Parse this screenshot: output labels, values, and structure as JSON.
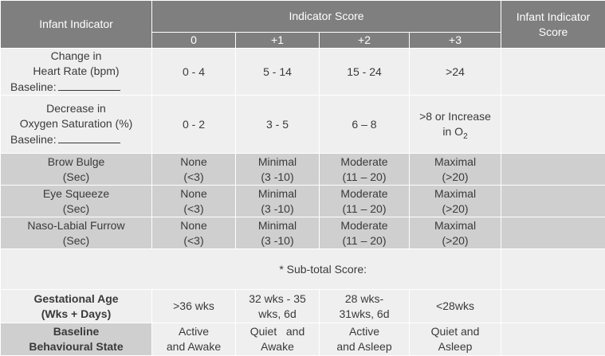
{
  "header": {
    "infant_indicator": "Infant Indicator",
    "indicator_score": "Indicator Score",
    "infant_indicator_score_l1": "Infant Indicator",
    "infant_indicator_score_l2": "Score",
    "scores": [
      "0",
      "+1",
      "+2",
      "+3"
    ]
  },
  "rows": {
    "heart_rate": {
      "label_l1": "Change in",
      "label_l2": "Heart Rate (bpm)",
      "baseline": "Baseline:",
      "cells": [
        "0 - 4",
        "5 - 14",
        "15 - 24",
        ">24"
      ]
    },
    "oxygen": {
      "label_l1": "Decrease in",
      "label_l2": "Oxygen Saturation (%)",
      "baseline": "Baseline:",
      "cells": [
        "0 - 2",
        "3 - 5",
        "6 – 8"
      ],
      "c3_l1": ">8 or Increase",
      "c3_l2": "in O",
      "c3_sub": "2"
    },
    "brow_bulge": {
      "label_l1": "Brow Bulge",
      "label_l2": "(Sec)",
      "cells": [
        [
          "None",
          "(<3)"
        ],
        [
          "Minimal",
          "(3 -10)"
        ],
        [
          "Moderate",
          "(11 – 20)"
        ],
        [
          "Maximal",
          "(>20)"
        ]
      ]
    },
    "eye_squeeze": {
      "label_l1": "Eye Squeeze",
      "label_l2": "(Sec)",
      "cells": [
        [
          "None",
          "(<3)"
        ],
        [
          "Minimal",
          "(3 -10)"
        ],
        [
          "Moderate",
          "(11 – 20)"
        ],
        [
          "Maximal",
          "(>20)"
        ]
      ]
    },
    "naso_labial": {
      "label_l1": "Naso-Labial Furrow",
      "label_l2": "(Sec)",
      "cells": [
        [
          "None",
          "(<3)"
        ],
        [
          "Minimal",
          "(3 -10)"
        ],
        [
          "Moderate",
          "(11 – 20)"
        ],
        [
          "Maximal",
          "(>20)"
        ]
      ]
    },
    "subtotal": "* Sub-total Score:",
    "gestational": {
      "label_l1": "Gestational Age",
      "label_l2": "(Wks + Days)",
      "cells": [
        [
          "&gt;36 wks"
        ],
        [
          "32 wks -  35",
          "wks, 6d"
        ],
        [
          "28 wks-",
          "31wks, 6d"
        ],
        [
          "<28wks"
        ]
      ]
    },
    "behavioural": {
      "label_l1": "Baseline",
      "label_l2": "Behavioural State",
      "cells": [
        [
          "Active",
          "and Awake"
        ],
        [
          "Quiet   and",
          "Awake"
        ],
        [
          "Active",
          "and Asleep"
        ],
        [
          "Quiet and",
          "Asleep"
        ]
      ]
    }
  }
}
